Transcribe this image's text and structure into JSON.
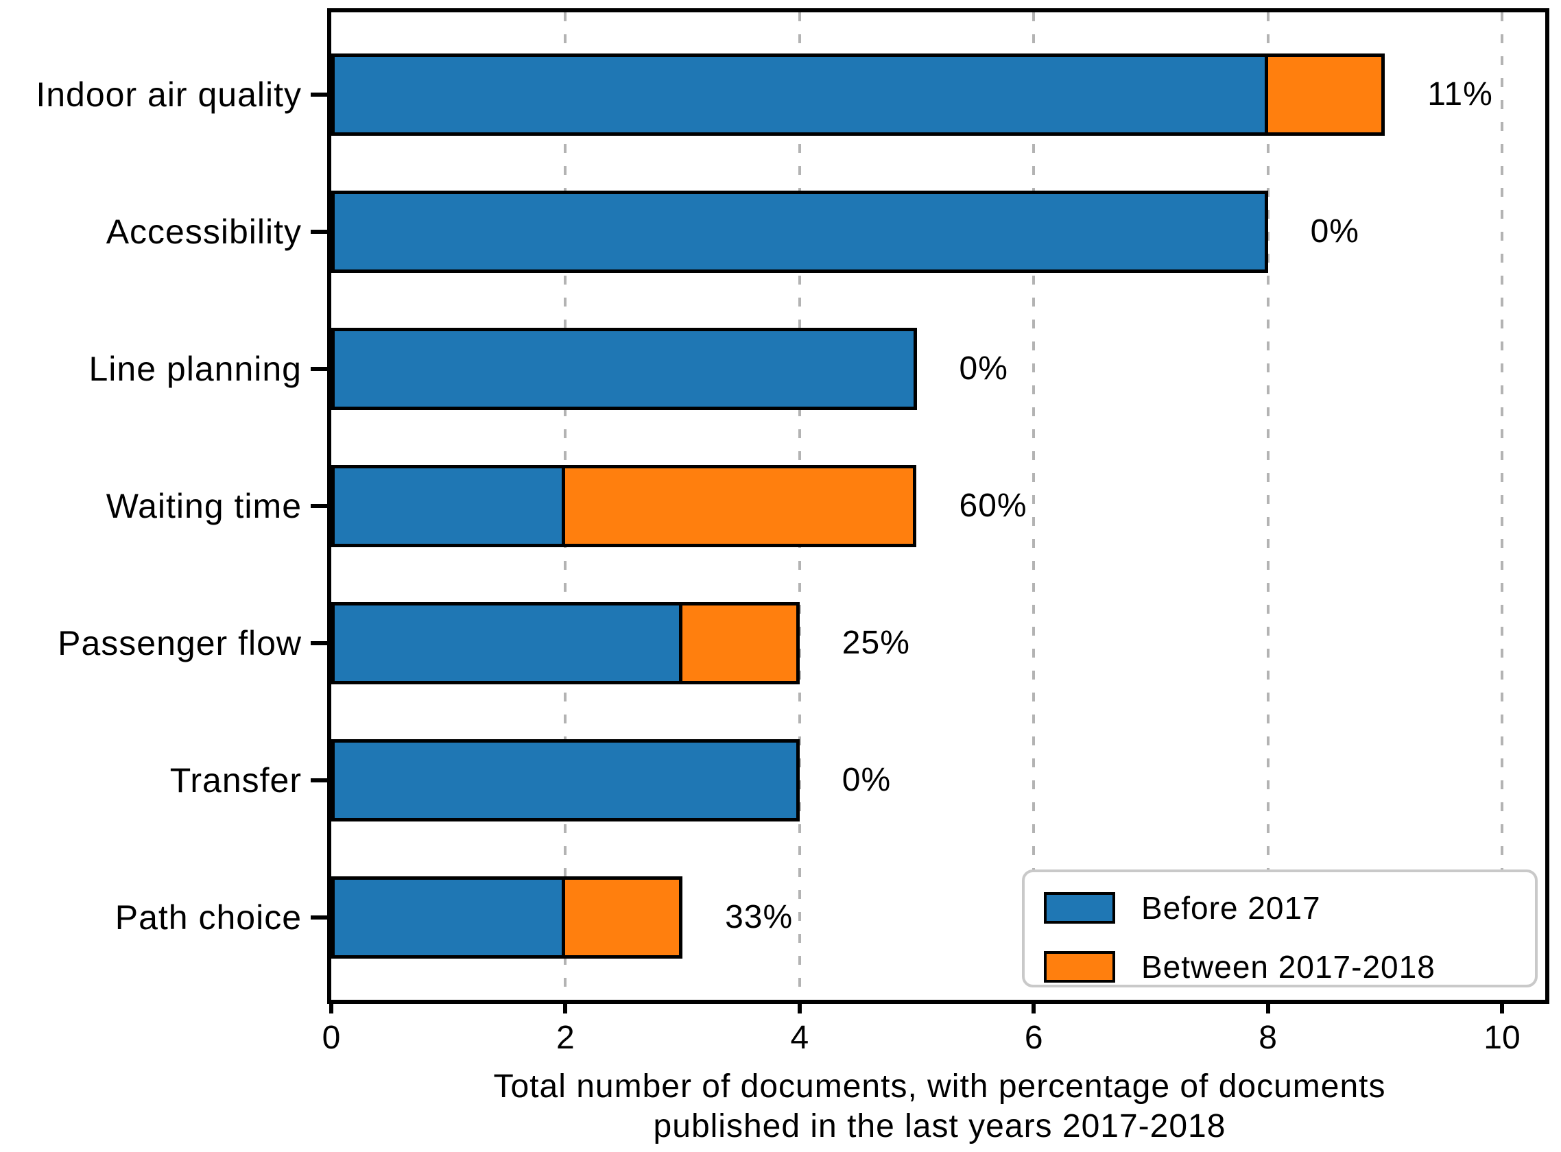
{
  "chart_data": {
    "type": "bar",
    "orientation": "horizontal",
    "title": "",
    "categories": [
      "Indoor air quality",
      "Accessibility",
      "Line planning",
      "Waiting time",
      "Passenger flow",
      "Transfer",
      "Path choice"
    ],
    "series": [
      {
        "name": "Before 2017",
        "color": "#1f77b4",
        "values": [
          8,
          8,
          5,
          2,
          3,
          4,
          2
        ]
      },
      {
        "name": "Between 2017-2018",
        "color": "#ff7f0e",
        "values": [
          1,
          0,
          0,
          3,
          1,
          0,
          1
        ]
      }
    ],
    "totals": [
      9,
      8,
      5,
      5,
      4,
      4,
      3
    ],
    "bar_labels": [
      "11%",
      "0%",
      "0%",
      "60%",
      "25%",
      "0%",
      "33%"
    ],
    "xlabel_line1": "Total number of documents, with percentage of documents",
    "xlabel_line2": "published in the last years 2017-2018",
    "ylabel": "",
    "x_ticks": [
      "0",
      "2",
      "4",
      "6",
      "8",
      "10"
    ],
    "x_tick_values": [
      0,
      2,
      4,
      6,
      8,
      10
    ],
    "xlim": [
      0,
      10.37
    ],
    "grid": "vertical dashed gridlines at ticks 2,4,6,8,10",
    "grid_color": "#b3b3b3",
    "bar_edge_color": "#000000",
    "background_color": "#ffffff",
    "legend": {
      "position": "lower right",
      "entries": [
        {
          "label": "Before 2017",
          "color": "#1f77b4"
        },
        {
          "label": "Between 2017-2018",
          "color": "#ff7f0e"
        }
      ]
    }
  }
}
